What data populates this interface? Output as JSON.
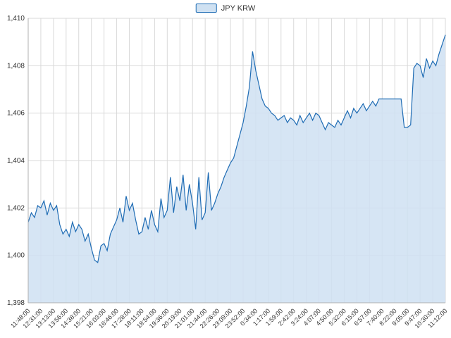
{
  "legend": {
    "label": "JPY KRW"
  },
  "chart_data": {
    "type": "area",
    "title": "",
    "series_name": "JPY KRW",
    "legend_position": "top-center",
    "grid": true,
    "ylim": [
      1398,
      1410
    ],
    "y_ticks": [
      1398,
      1400,
      1402,
      1404,
      1406,
      1408,
      1410
    ],
    "y_tick_labels": [
      "1,398",
      "1,400",
      "1,402",
      "1,404",
      "1,406",
      "1,408",
      "1,410"
    ],
    "x_tick_labels": [
      "11:48:00",
      "12:31:00",
      "13:13:00",
      "13:56:00",
      "14:38:00",
      "15:21:00",
      "16:03:00",
      "16:46:00",
      "17:28:00",
      "18:11:00",
      "18:54:00",
      "19:36:00",
      "20:19:00",
      "21:01:00",
      "21:44:00",
      "22:26:00",
      "23:09:00",
      "23:52:00",
      "0:34:00",
      "1:17:00",
      "1:59:00",
      "2:42:00",
      "3:24:00",
      "4:07:00",
      "4:50:00",
      "5:32:00",
      "6:15:00",
      "6:57:00",
      "7:40:00",
      "8:22:00",
      "9:05:00",
      "9:47:00",
      "10:30:00",
      "11:12:00"
    ],
    "values": [
      1401.4,
      1401.8,
      1401.6,
      1402.1,
      1402.0,
      1402.3,
      1401.7,
      1402.2,
      1401.9,
      1402.1,
      1401.3,
      1400.9,
      1401.1,
      1400.8,
      1401.4,
      1401.0,
      1401.3,
      1401.1,
      1400.6,
      1400.9,
      1400.3,
      1399.8,
      1399.7,
      1400.4,
      1400.5,
      1400.2,
      1400.9,
      1401.2,
      1401.5,
      1402.0,
      1401.4,
      1402.5,
      1401.9,
      1402.2,
      1401.5,
      1400.9,
      1401.0,
      1401.6,
      1401.1,
      1401.9,
      1401.3,
      1401.0,
      1402.4,
      1401.6,
      1401.9,
      1403.3,
      1401.8,
      1402.9,
      1402.3,
      1403.4,
      1401.9,
      1403.0,
      1402.2,
      1401.1,
      1403.3,
      1401.5,
      1401.8,
      1403.5,
      1401.9,
      1402.2,
      1402.6,
      1402.9,
      1403.3,
      1403.6,
      1403.9,
      1404.1,
      1404.6,
      1405.1,
      1405.6,
      1406.3,
      1407.1,
      1408.6,
      1407.8,
      1407.2,
      1406.6,
      1406.3,
      1406.2,
      1406.0,
      1405.9,
      1405.7,
      1405.8,
      1405.9,
      1405.6,
      1405.8,
      1405.7,
      1405.5,
      1405.9,
      1405.6,
      1405.8,
      1406.0,
      1405.7,
      1406.0,
      1405.9,
      1405.6,
      1405.3,
      1405.6,
      1405.5,
      1405.4,
      1405.7,
      1405.5,
      1405.8,
      1406.1,
      1405.8,
      1406.2,
      1406.0,
      1406.2,
      1406.4,
      1406.1,
      1406.3,
      1406.5,
      1406.3,
      1406.6,
      1406.6,
      1406.6,
      1406.6,
      1406.6,
      1406.6,
      1406.6,
      1406.6,
      1405.4,
      1405.4,
      1405.5,
      1407.9,
      1408.1,
      1408.0,
      1407.5,
      1408.3,
      1407.9,
      1408.2,
      1408.0,
      1408.5,
      1408.9,
      1409.3
    ],
    "colors": {
      "line": "#1f6cb4",
      "fill": "#cfe1f2",
      "grid": "#d9d9d9",
      "axis": "#b0b0b0",
      "text": "#333333"
    }
  }
}
